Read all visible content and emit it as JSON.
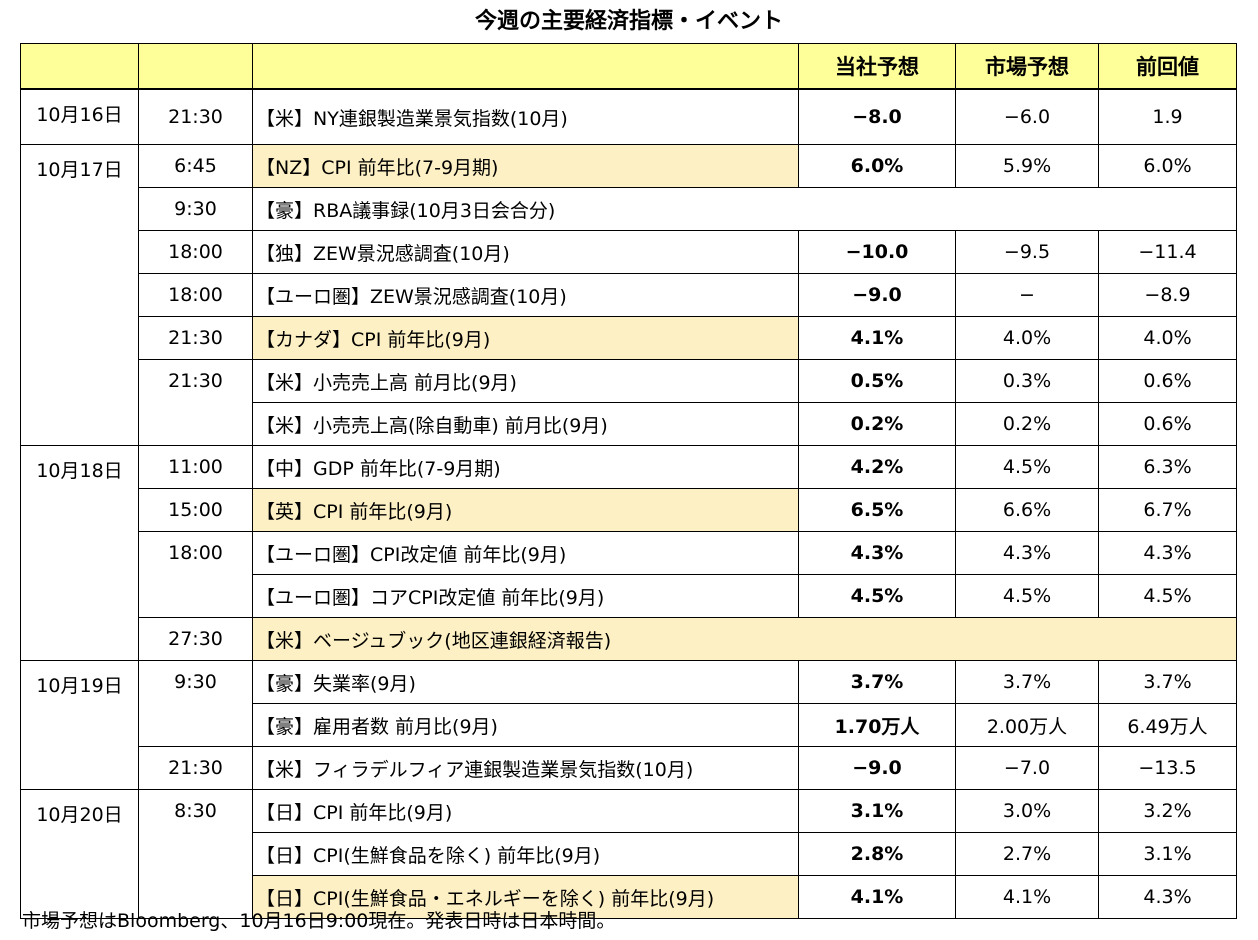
{
  "title": "今週の主要経済指標・イベント",
  "header": {
    "date": "",
    "time": "",
    "event": "",
    "company": "当社予想",
    "market": "市場予想",
    "previous": "前回値"
  },
  "groups": [
    {
      "date": "10月16日",
      "rows": [
        {
          "time": "21:30",
          "event": "【米】NY連銀製造業景気指数(10月)",
          "company": "−8.0",
          "market": "−6.0",
          "previous": "1.9",
          "highlight": false
        }
      ]
    },
    {
      "date": "10月17日",
      "rows": [
        {
          "time": "6:45",
          "event": "【NZ】CPI 前年比(7-9月期)",
          "company": "6.0%",
          "market": "5.9%",
          "previous": "6.0%",
          "highlight": true
        },
        {
          "time": "9:30",
          "event": "【豪】RBA議事録(10月3日会合分)",
          "company": "",
          "market": "",
          "previous": "",
          "highlight": false,
          "span": true
        },
        {
          "time": "18:00",
          "event": "【独】ZEW景況感調査(10月)",
          "company": "−10.0",
          "market": "−9.5",
          "previous": "−11.4",
          "highlight": false
        },
        {
          "time": "18:00",
          "event": "【ユーロ圏】ZEW景況感調査(10月)",
          "company": "−9.0",
          "market": "−",
          "previous": "−8.9",
          "highlight": false
        },
        {
          "time": "21:30",
          "event": "【カナダ】CPI 前年比(9月)",
          "company": "4.1%",
          "market": "4.0%",
          "previous": "4.0%",
          "highlight": true
        },
        {
          "time": "21:30",
          "event": "【米】小売売上高 前月比(9月)",
          "company": "0.5%",
          "market": "0.3%",
          "previous": "0.6%",
          "highlight": false
        },
        {
          "time": "",
          "event": "【米】小売売上高(除自動車) 前月比(9月)",
          "company": "0.2%",
          "market": "0.2%",
          "previous": "0.6%",
          "highlight": false
        }
      ]
    },
    {
      "date": "10月18日",
      "rows": [
        {
          "time": "11:00",
          "event": "【中】GDP 前年比(7-9月期)",
          "company": "4.2%",
          "market": "4.5%",
          "previous": "6.3%",
          "highlight": false
        },
        {
          "time": "15:00",
          "event": "【英】CPI 前年比(9月)",
          "company": "6.5%",
          "market": "6.6%",
          "previous": "6.7%",
          "highlight": true
        },
        {
          "time": "18:00",
          "event": "【ユーロ圏】CPI改定値 前年比(9月)",
          "company": "4.3%",
          "market": "4.3%",
          "previous": "4.3%",
          "highlight": false
        },
        {
          "time": "",
          "event": "【ユーロ圏】コアCPI改定値 前年比(9月)",
          "company": "4.5%",
          "market": "4.5%",
          "previous": "4.5%",
          "highlight": false
        },
        {
          "time": "27:30",
          "event": "【米】ベージュブック(地区連銀経済報告)",
          "company": "",
          "market": "",
          "previous": "",
          "highlight": true,
          "span": true
        }
      ]
    },
    {
      "date": "10月19日",
      "rows": [
        {
          "time": "9:30",
          "event": "【豪】失業率(9月)",
          "company": "3.7%",
          "market": "3.7%",
          "previous": "3.7%",
          "highlight": false
        },
        {
          "time": "",
          "event": "【豪】雇用者数 前月比(9月)",
          "company": "1.70万人",
          "market": "2.00万人",
          "previous": "6.49万人",
          "highlight": false
        },
        {
          "time": "21:30",
          "event": "【米】フィラデルフィア連銀製造業景気指数(10月)",
          "company": "−9.0",
          "market": "−7.0",
          "previous": "−13.5",
          "highlight": false
        }
      ]
    },
    {
      "date": "10月20日",
      "rows": [
        {
          "time": "8:30",
          "event": "【日】CPI 前年比(9月)",
          "company": "3.1%",
          "market": "3.0%",
          "previous": "3.2%",
          "highlight": false
        },
        {
          "time": "",
          "event": "【日】CPI(生鮮食品を除く) 前年比(9月)",
          "company": "2.8%",
          "market": "2.7%",
          "previous": "3.1%",
          "highlight": false
        },
        {
          "time": "",
          "event": "【日】CPI(生鮮食品・エネルギーを除く) 前年比(9月)",
          "company": "4.1%",
          "market": "4.1%",
          "previous": "4.3%",
          "highlight": true
        }
      ]
    }
  ],
  "footnote": "市場予想はBloomberg、10月16日9:00現在。発表日時は日本時間。"
}
